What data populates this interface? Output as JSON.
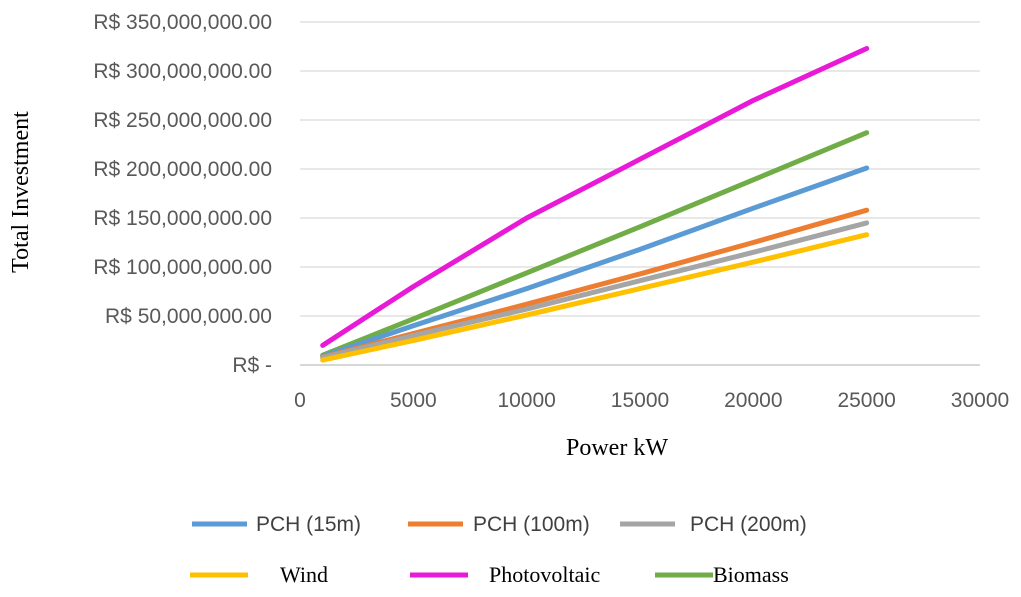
{
  "chart_data": {
    "type": "line",
    "title": "",
    "xlabel": "Power kW",
    "ylabel": "Total Investment",
    "xlim": [
      0,
      30000
    ],
    "ylim": [
      0,
      350000000
    ],
    "x_ticks": [
      0,
      5000,
      10000,
      15000,
      20000,
      25000,
      30000
    ],
    "x_tick_labels": [
      "0",
      "5000",
      "10000",
      "15000",
      "20000",
      "25000",
      "30000"
    ],
    "y_ticks": [
      0,
      50000000,
      100000000,
      150000000,
      200000000,
      250000000,
      300000000,
      350000000
    ],
    "y_tick_labels": [
      "R$ -",
      "R$ 50,000,000.00",
      "R$ 100,000,000.00",
      "R$ 150,000,000.00",
      "R$ 200,000,000.00",
      "R$ 250,000,000.00",
      "R$ 300,000,000.00",
      "R$ 350,000,000.00"
    ],
    "grid": "horizontal",
    "legend_position": "bottom",
    "series": [
      {
        "name": "PCH (15m)",
        "color": "#5B9BD5",
        "legend_font": "sans",
        "x": [
          1000,
          5000,
          10000,
          15000,
          20000,
          25000
        ],
        "y": [
          9000000,
          40000000,
          78000000,
          118000000,
          160000000,
          201000000
        ]
      },
      {
        "name": "PCH (100m)",
        "color": "#ED7D31",
        "legend_font": "sans",
        "x": [
          1000,
          5000,
          10000,
          15000,
          20000,
          25000
        ],
        "y": [
          8000000,
          32000000,
          62000000,
          93000000,
          125000000,
          158000000
        ]
      },
      {
        "name": "PCH (200m)",
        "color": "#A5A5A5",
        "legend_font": "sans",
        "x": [
          1000,
          5000,
          10000,
          15000,
          20000,
          25000
        ],
        "y": [
          7500000,
          30000000,
          57000000,
          86000000,
          115000000,
          145000000
        ]
      },
      {
        "name": "Wind",
        "color": "#FFC000",
        "legend_font": "serif",
        "x": [
          1000,
          5000,
          10000,
          15000,
          20000,
          25000
        ],
        "y": [
          5000000,
          25000000,
          51000000,
          78000000,
          105000000,
          133000000
        ]
      },
      {
        "name": "Photovoltaic",
        "color": "#E81AD8",
        "legend_font": "serif",
        "x": [
          1000,
          5000,
          10000,
          15000,
          20000,
          25000
        ],
        "y": [
          20000000,
          80000000,
          150000000,
          210000000,
          270000000,
          323000000
        ]
      },
      {
        "name": "Biomass",
        "color": "#70AD47",
        "legend_font": "serif",
        "x": [
          1000,
          5000,
          10000,
          15000,
          20000,
          25000
        ],
        "y": [
          10000000,
          47000000,
          94000000,
          141000000,
          189000000,
          237000000
        ]
      }
    ]
  }
}
